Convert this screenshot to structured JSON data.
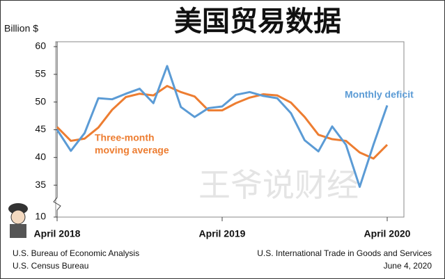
{
  "chart_data": {
    "type": "line",
    "title": "美国贸易数据",
    "y_label": "Billion $",
    "watermark": "王爷说财经",
    "annotations": [
      "Three-month",
      "moving average",
      "Monthly deficit"
    ],
    "sources_left": [
      "U.S. Bureau of Economic Analysis",
      "U.S. Census Bureau"
    ],
    "sources_right": [
      "U.S. International Trade in Goods and Services",
      "June 4, 2020"
    ],
    "categories": [
      "April 2018",
      null,
      null,
      null,
      null,
      null,
      null,
      null,
      null,
      null,
      null,
      null,
      "April 2019",
      null,
      null,
      null,
      null,
      null,
      null,
      null,
      null,
      null,
      null,
      null,
      "April 2020"
    ],
    "series": [
      {
        "name": "Monthly deficit",
        "color": "#5b9bd5",
        "values": [
          45.0,
          41.2,
          44.4,
          50.7,
          50.5,
          51.5,
          52.4,
          49.8,
          56.5,
          49.1,
          47.3,
          48.9,
          49.2,
          51.3,
          51.8,
          51.1,
          50.7,
          48.0,
          43.1,
          41.1,
          45.6,
          42.3,
          34.7,
          42.3,
          49.4
        ]
      },
      {
        "name": "Three-month moving average",
        "color": "#ed7d31",
        "values": [
          45.5,
          43.0,
          43.4,
          45.4,
          48.6,
          50.9,
          51.5,
          51.2,
          52.9,
          51.8,
          51.0,
          48.5,
          48.5,
          49.8,
          50.8,
          51.4,
          51.2,
          49.9,
          47.3,
          44.1,
          43.3,
          43.0,
          40.9,
          39.8,
          42.3
        ]
      }
    ],
    "ylim": [
      10,
      60
    ],
    "axis_break": [
      10,
      30
    ],
    "yticks": [
      10,
      35,
      40,
      45,
      50,
      55,
      60
    ],
    "grid": false
  }
}
